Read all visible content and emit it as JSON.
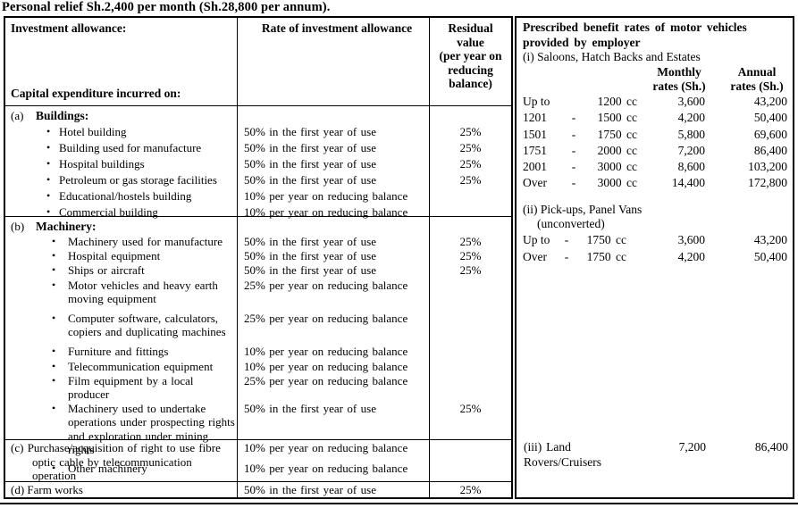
{
  "title": "Personal relief Sh.2,400 per month (Sh.28,800 per annum).",
  "investment_table": {
    "header": {
      "col1_top": "Investment allowance:",
      "col1_bottom": "Capital expenditure incurred on:",
      "col2": "Rate of investment allowance",
      "col3_lines": [
        "Residual",
        "value",
        "(per year on",
        "reducing",
        "balance)"
      ]
    },
    "sections": [
      {
        "label": "(a)",
        "title": "Buildings:",
        "items": [
          {
            "label": "Hotel building",
            "rate": "50% in the first year of use",
            "residual": "25%"
          },
          {
            "label": "Building used for manufacture",
            "rate": "50% in the first year of use",
            "residual": "25%"
          },
          {
            "label": "Hospital buildings",
            "rate": "50% in the first year of use",
            "residual": "25%"
          },
          {
            "label": "Petroleum or gas storage facilities",
            "rate": "50% in the first year of use",
            "residual": "25%"
          },
          {
            "label": "Educational/hostels building",
            "rate": "10% per year on reducing balance",
            "residual": ""
          },
          {
            "label": "Commercial building",
            "rate": "10% per year on reducing balance",
            "residual": ""
          }
        ]
      },
      {
        "label": "(b)",
        "title": "Machinery:",
        "items": [
          {
            "label": "Machinery used for manufacture",
            "rate": "50% in the first year of use",
            "residual": "25%"
          },
          {
            "label": "Hospital equipment",
            "rate": "50% in the first year of use",
            "residual": "25%"
          },
          {
            "label": "Ships or aircraft",
            "rate": "50% in the first year of use",
            "residual": "25%"
          },
          {
            "label": "Motor vehicles and heavy earth moving equipment",
            "rate": "25% per year on reducing balance",
            "residual": ""
          },
          {
            "label": "Computer software, calculators, copiers and duplicating machines",
            "rate": "25% per year on reducing balance",
            "residual": ""
          },
          {
            "label": "Furniture and fittings",
            "rate": "10% per year on reducing balance",
            "residual": ""
          },
          {
            "label": "Telecommunication equipment",
            "rate": "10% per year on reducing balance",
            "residual": ""
          },
          {
            "label": "Film equipment by a local producer",
            "rate": "25% per year on reducing balance",
            "residual": ""
          },
          {
            "label": "Machinery used to undertake operations under prospecting rights and exploration under mining rights",
            "rate": "50% in the first year of use",
            "residual": "25%"
          },
          {
            "label": "Other machinery",
            "rate": "10% per year on reducing balance",
            "residual": ""
          }
        ]
      }
    ],
    "rows_cd": [
      {
        "label": "(c)",
        "text": "Purchase/acquisition of right to use fibre optic cable by telecommunication operation",
        "rate": "10% per year on reducing balance",
        "residual": ""
      },
      {
        "label": "(d)",
        "text": "Farm works",
        "rate": "50% in the first year of use",
        "residual": "25%"
      }
    ]
  },
  "benefit_table": {
    "title": "Prescribed benefit rates of motor vehicles provided by employer",
    "monthly_header": "Monthly rates (Sh.)",
    "annual_header": "Annual rates (Sh.)",
    "section_i": {
      "heading": "(i) Saloons, Hatch Backs and Estates",
      "rows": [
        {
          "from": "Up to",
          "dash": "",
          "cc": "1200 cc",
          "monthly": "3,600",
          "annual": "43,200"
        },
        {
          "from": "1201",
          "dash": "-",
          "cc": "1500 cc",
          "monthly": "4,200",
          "annual": "50,400"
        },
        {
          "from": "1501",
          "dash": "-",
          "cc": "1750 cc",
          "monthly": "5,800",
          "annual": "69,600"
        },
        {
          "from": "1751",
          "dash": "-",
          "cc": "2000 cc",
          "monthly": "7,200",
          "annual": "86,400"
        },
        {
          "from": "2001",
          "dash": "-",
          "cc": "3000 cc",
          "monthly": "8,600",
          "annual": "103,200"
        },
        {
          "from": "Over",
          "dash": "-",
          "cc": "3000 cc",
          "monthly": "14,400",
          "annual": "172,800"
        }
      ]
    },
    "section_ii": {
      "heading": "(ii) Pick-ups, Panel Vans",
      "subheading": "(unconverted)",
      "rows": [
        {
          "from": "Up to",
          "dash": "-",
          "cc": "1750 cc",
          "monthly": "3,600",
          "annual": "43,200"
        },
        {
          "from": "Over",
          "dash": "-",
          "cc": "1750 cc",
          "monthly": "4,200",
          "annual": "50,400"
        }
      ]
    },
    "section_iii": {
      "heading": "(iii) Land Rovers/Cruisers",
      "monthly": "7,200",
      "annual": "86,400"
    }
  }
}
